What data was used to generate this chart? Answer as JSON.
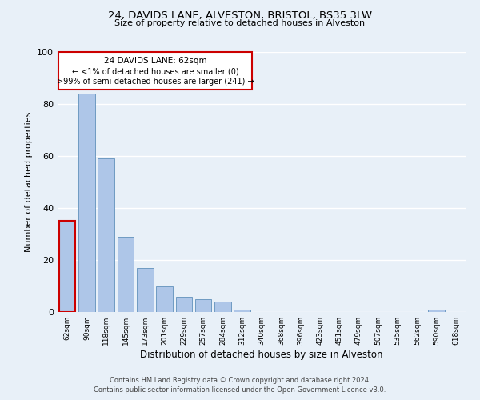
{
  "title": "24, DAVIDS LANE, ALVESTON, BRISTOL, BS35 3LW",
  "subtitle": "Size of property relative to detached houses in Alveston",
  "xlabel": "Distribution of detached houses by size in Alveston",
  "ylabel": "Number of detached properties",
  "bar_labels": [
    "62sqm",
    "90sqm",
    "118sqm",
    "145sqm",
    "173sqm",
    "201sqm",
    "229sqm",
    "257sqm",
    "284sqm",
    "312sqm",
    "340sqm",
    "368sqm",
    "396sqm",
    "423sqm",
    "451sqm",
    "479sqm",
    "507sqm",
    "535sqm",
    "562sqm",
    "590sqm",
    "618sqm"
  ],
  "bar_values": [
    35,
    84,
    59,
    29,
    17,
    10,
    6,
    5,
    4,
    1,
    0,
    0,
    0,
    0,
    0,
    0,
    0,
    0,
    0,
    1,
    0
  ],
  "bar_color": "#aec6e8",
  "bar_edge_color": "#6090bb",
  "highlight_bar_index": 0,
  "highlight_bar_edge_color": "#cc0000",
  "annotation_line1": "24 DAVIDS LANE: 62sqm",
  "annotation_line2": "← <1% of detached houses are smaller (0)",
  "annotation_line3": ">99% of semi-detached houses are larger (241) →",
  "annotation_box_facecolor": "white",
  "annotation_box_edgecolor": "#cc0000",
  "ylim": [
    0,
    100
  ],
  "yticks": [
    0,
    20,
    40,
    60,
    80,
    100
  ],
  "bg_color": "#e8f0f8",
  "grid_color": "white",
  "footer_line1": "Contains HM Land Registry data © Crown copyright and database right 2024.",
  "footer_line2": "Contains public sector information licensed under the Open Government Licence v3.0."
}
